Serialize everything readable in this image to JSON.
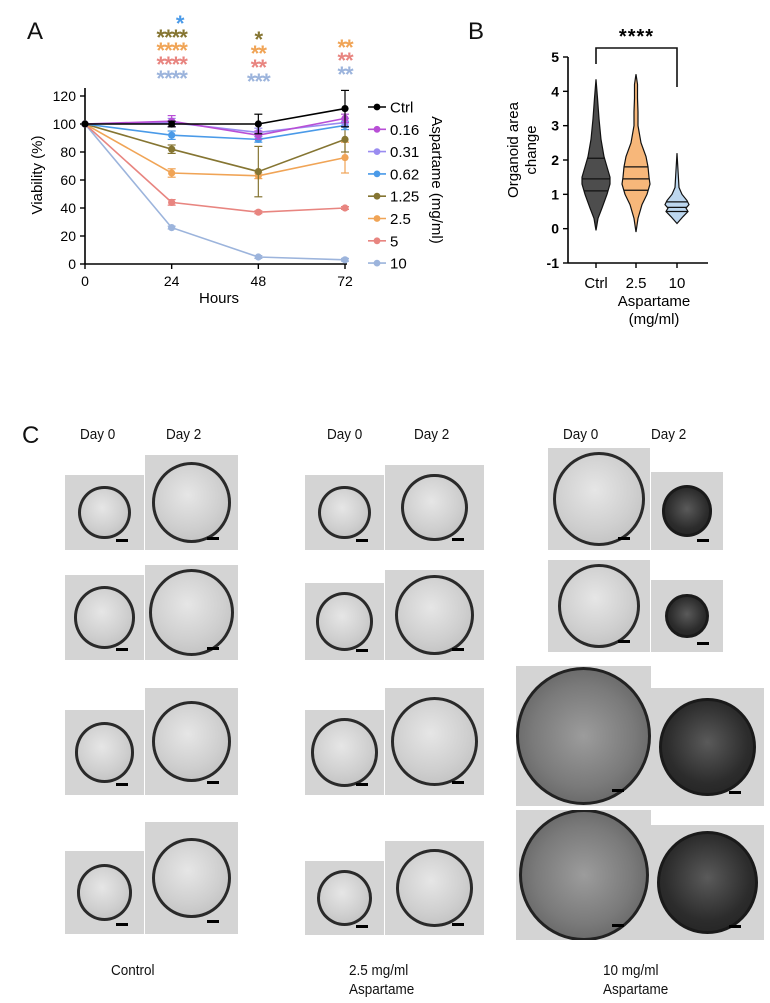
{
  "panels": {
    "a_label": "A",
    "b_label": "B",
    "c_label": "C"
  },
  "chart_data": [
    {
      "type": "line",
      "panel": "A",
      "xlabel": "Hours",
      "ylabel": "Viability (%)",
      "x": [
        0,
        24,
        48,
        72
      ],
      "xticks": [
        "0",
        "24",
        "48",
        "72"
      ],
      "yticks": [
        "0",
        "20",
        "40",
        "60",
        "80",
        "100",
        "120"
      ],
      "xlim": [
        0,
        72
      ],
      "ylim": [
        0,
        120
      ],
      "legend_title": "Aspartame (mg/ml)",
      "legend_position": "right",
      "series": [
        {
          "name": "Ctrl",
          "color": "#000000",
          "values": [
            100,
            100,
            100,
            111
          ],
          "err": [
            0,
            2,
            7,
            13
          ]
        },
        {
          "name": "0.16",
          "color": "#b84fd6",
          "values": [
            100,
            102,
            92,
            104
          ],
          "err": [
            0,
            4,
            3,
            3
          ]
        },
        {
          "name": "0.31",
          "color": "#9a8cf0",
          "values": [
            100,
            101,
            94,
            101
          ],
          "err": [
            0,
            3,
            3,
            3
          ]
        },
        {
          "name": "0.62",
          "color": "#4a9ae8",
          "values": [
            100,
            92,
            89,
            99
          ],
          "err": [
            0,
            3,
            2,
            3
          ]
        },
        {
          "name": "1.25",
          "color": "#857532",
          "values": [
            100,
            82,
            66,
            89
          ],
          "err": [
            0,
            3,
            18,
            9
          ]
        },
        {
          "name": "2.5",
          "color": "#f0a456",
          "values": [
            100,
            65,
            63,
            76
          ],
          "err": [
            0,
            3,
            2,
            11
          ]
        },
        {
          "name": "5",
          "color": "#e88580",
          "values": [
            100,
            44,
            37,
            40
          ],
          "err": [
            0,
            2,
            1,
            1
          ]
        },
        {
          "name": "10",
          "color": "#9cb4dc",
          "values": [
            100,
            26,
            5,
            3
          ],
          "err": [
            0,
            1,
            1,
            1
          ]
        }
      ],
      "significance": [
        {
          "x": 24,
          "marks": [
            {
              "text": "*",
              "color": "#4a9ae8"
            },
            {
              "text": "****",
              "color": "#857532"
            },
            {
              "text": "****",
              "color": "#f0a456"
            },
            {
              "text": "****",
              "color": "#e88580"
            },
            {
              "text": "****",
              "color": "#9cb4dc"
            }
          ]
        },
        {
          "x": 48,
          "marks": [
            {
              "text": "*",
              "color": "#857532"
            },
            {
              "text": "**",
              "color": "#f0a456"
            },
            {
              "text": "**",
              "color": "#e88580"
            },
            {
              "text": "***",
              "color": "#9cb4dc"
            }
          ]
        },
        {
          "x": 72,
          "marks": [
            {
              "text": "**",
              "color": "#f0a456"
            },
            {
              "text": "**",
              "color": "#e88580"
            },
            {
              "text": "**",
              "color": "#9cb4dc"
            }
          ]
        }
      ]
    },
    {
      "type": "violin",
      "panel": "B",
      "ylabel": "Organoid area change",
      "xlabel": "Aspartame (mg/ml)",
      "categories": [
        "Ctrl",
        "2.5",
        "10"
      ],
      "yticks": [
        "-1",
        "0",
        "1",
        "2",
        "3",
        "4",
        "5"
      ],
      "ylim": [
        -1,
        5
      ],
      "violins": [
        {
          "name": "Ctrl",
          "color": "#4d4d4d",
          "min": -0.05,
          "max": 4.35,
          "q1": 1.1,
          "median": 1.45,
          "q3": 2.05
        },
        {
          "name": "2.5",
          "color": "#f7b77a",
          "min": -0.1,
          "max": 4.5,
          "q1": 1.12,
          "median": 1.45,
          "q3": 1.8
        },
        {
          "name": "10",
          "color": "#bdd7ef",
          "min": 0.15,
          "max": 2.2,
          "q1": 0.5,
          "median": 0.62,
          "q3": 0.78
        }
      ],
      "comparison": {
        "from": "Ctrl",
        "to": "10",
        "label": "****"
      }
    }
  ],
  "panel_c": {
    "groups": [
      {
        "day0_label": "Day 0",
        "day2_label": "Day 2",
        "caption_line1": "Control",
        "caption_line2": ""
      },
      {
        "day0_label": "Day 0",
        "day2_label": "Day 2",
        "caption_line1": "2.5 mg/ml",
        "caption_line2": "Aspartame"
      },
      {
        "day0_label": "Day 0",
        "day2_label": "Day 2",
        "caption_line1": "10 mg/ml",
        "caption_line2": "Aspartame"
      }
    ]
  }
}
